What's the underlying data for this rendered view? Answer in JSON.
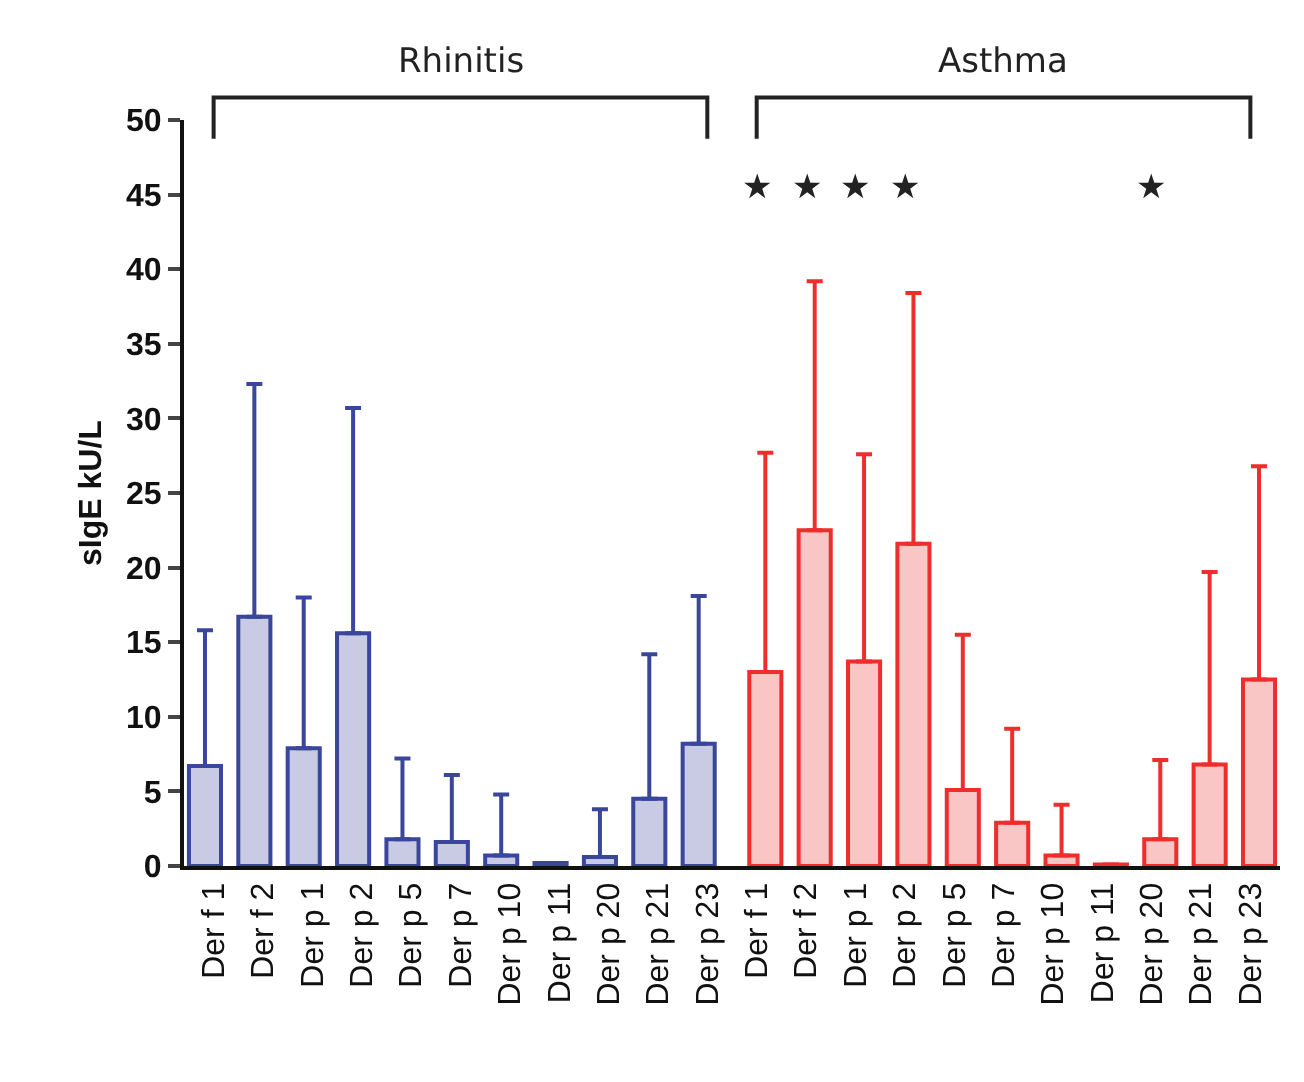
{
  "chart_data": {
    "type": "bar",
    "ylabel": "sIgE kU/L",
    "categories": [
      "Der f 1",
      "Der f 2",
      "Der p 1",
      "Der p 2",
      "Der p 5",
      "Der p 7",
      "Der p 10",
      "Der p 11",
      "Der p 20",
      "Der p 21",
      "Der p 23",
      "Der f 1",
      "Der f 2",
      "Der p 1",
      "Der p 2",
      "Der p 5",
      "Der p 7",
      "Der p 10",
      "Der p 11",
      "Der p 20",
      "Der p 21",
      "Der p 23"
    ],
    "series": [
      {
        "color": "#3a459c",
        "values": [
          6.7,
          16.7,
          7.9,
          15.6,
          1.8,
          1.6,
          0.7,
          0.2,
          0.6,
          4.5,
          8.2,
          null,
          null,
          null,
          null,
          null,
          null,
          null,
          null,
          null,
          null,
          null
        ],
        "errors": [
          [
            6.7,
            15.8
          ],
          [
            16.7,
            32.3
          ],
          [
            7.9,
            18
          ],
          [
            15.6,
            30.7
          ],
          [
            1.8,
            7.2
          ],
          [
            1.6,
            6.1
          ],
          [
            0.7,
            4.8
          ],
          null,
          [
            0.6,
            3.8
          ],
          [
            4.5,
            14.2
          ],
          [
            8.2,
            18.1
          ],
          null,
          null,
          null,
          null,
          null,
          null,
          null,
          null,
          null,
          null,
          null
        ]
      },
      {
        "color": "#ee2d2d",
        "values": [
          null,
          null,
          null,
          null,
          null,
          null,
          null,
          null,
          null,
          null,
          null,
          13,
          22.5,
          13.7,
          21.6,
          5.1,
          2.9,
          0.7,
          0.1,
          1.8,
          6.8,
          12.5
        ],
        "errors": [
          null,
          null,
          null,
          null,
          null,
          null,
          null,
          null,
          null,
          null,
          null,
          [
            13,
            27.7
          ],
          [
            22.5,
            39.2
          ],
          [
            13.7,
            27.6
          ],
          [
            21.6,
            38.4
          ],
          [
            5.1,
            15.5
          ],
          [
            2.9,
            9.2
          ],
          [
            0.7,
            4.1
          ],
          null,
          [
            1.8,
            7.1
          ],
          [
            6.8,
            19.7
          ],
          [
            12.5,
            26.8
          ]
        ]
      }
    ],
    "annotations": [
      "Rhinitis",
      "Asthma",
      "★",
      "★",
      "★",
      "★",
      "★"
    ],
    "ylim": [
      0,
      50
    ],
    "yticks": [
      0,
      5,
      10,
      15,
      20,
      25,
      30,
      35,
      40,
      45,
      50
    ],
    "grid": false
  }
}
